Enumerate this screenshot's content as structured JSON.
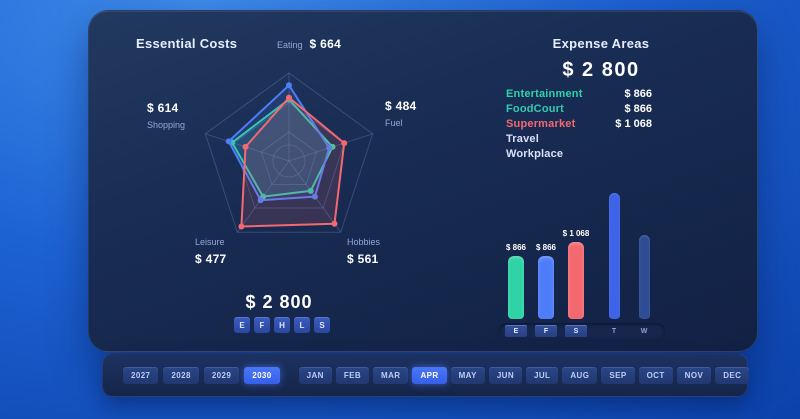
{
  "left": {
    "title": "Essential Costs",
    "total": "$ 2 800",
    "filter_buttons": [
      "E",
      "F",
      "H",
      "L",
      "S"
    ]
  },
  "right": {
    "title": "Expense Areas",
    "total": "$ 2 800",
    "legend": [
      {
        "name": "Entertainment",
        "value": "$ 866",
        "color": "#2fd3a6"
      },
      {
        "name": "FoodCourt",
        "value": "$ 866",
        "color": "#35c9b0"
      },
      {
        "name": "Supermarket",
        "value": "$ 1 068",
        "color": "#f4696f"
      },
      {
        "name": "Travel",
        "value": "",
        "color": "#d7e1f8"
      },
      {
        "name": "Workplace",
        "value": "",
        "color": "#d7e1f8"
      }
    ]
  },
  "chart_data": [
    {
      "type": "radar",
      "title": "Essential Costs",
      "axes": [
        "Eating",
        "Fuel",
        "Hobbies",
        "Leisure",
        "Shopping"
      ],
      "axis_values": [
        "$ 664",
        "$ 484",
        "$ 561",
        "$ 477",
        "$ 614"
      ],
      "total": "$ 2 800",
      "max": 1,
      "series": [
        {
          "name": "Entertainment",
          "color": "#2fd3a6",
          "values": [
            0.7,
            0.52,
            0.42,
            0.5,
            0.68
          ]
        },
        {
          "name": "FoodCourt",
          "color": "#4f7df9",
          "values": [
            0.86,
            0.48,
            0.5,
            0.55,
            0.72
          ]
        },
        {
          "name": "Supermarket",
          "color": "#f4696f",
          "values": [
            0.72,
            0.66,
            0.88,
            0.92,
            0.52
          ]
        }
      ]
    },
    {
      "type": "bar",
      "categories": [
        "E",
        "F",
        "S",
        "T",
        "W"
      ],
      "values": [
        866,
        866,
        1068,
        1750,
        1160
      ],
      "labels": [
        "$ 866",
        "$ 866",
        "$ 1 068",
        "",
        ""
      ],
      "colors": [
        "#2fd3a6",
        "#4f7df9",
        "#f4696f",
        "#3d63e6",
        "#2f4d95"
      ],
      "highlighted_categories": [
        "E",
        "F",
        "S"
      ],
      "ylim": [
        0,
        1800
      ],
      "legend_position": "none"
    }
  ],
  "timeline": {
    "years": [
      "2027",
      "2028",
      "2029",
      "2030"
    ],
    "active_year": "2030",
    "months": [
      "JAN",
      "FEB",
      "MAR",
      "APR",
      "MAY",
      "JUN",
      "JUL",
      "AUG",
      "SEP",
      "OCT",
      "NOV",
      "DEC"
    ],
    "active_month": "APR"
  }
}
